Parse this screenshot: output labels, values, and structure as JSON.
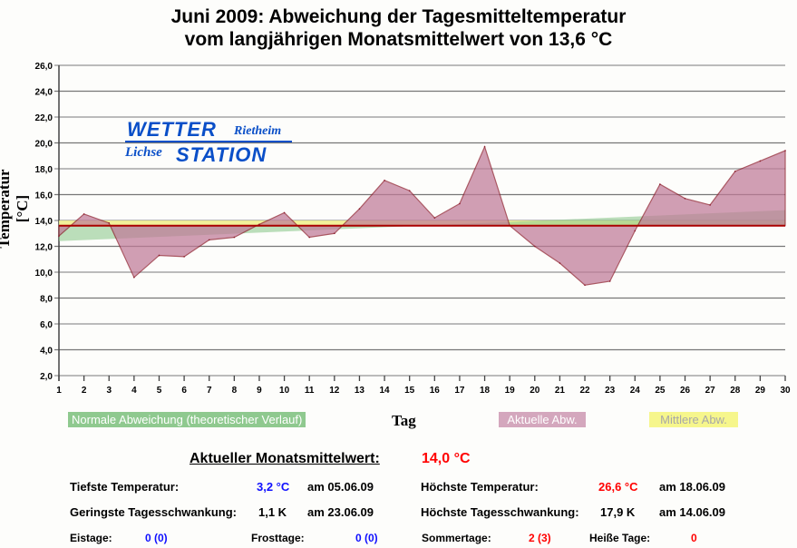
{
  "title": [
    "Juni 2009: Abweichung der Tagesmitteltemperatur",
    "vom langjährigen Monatsmittelwert von 13,6 °C"
  ],
  "logo": {
    "word1": "WETTER",
    "place": "Rietheim",
    "word3": "Lichse",
    "word2": "STATION"
  },
  "chart_data": {
    "type": "area",
    "title": "Juni 2009: Abweichung der Tagesmitteltemperatur vom langjährigen Monatsmittelwert von 13,6 °C",
    "xlabel": "Tag",
    "ylabel": "Temperatur [°C]",
    "ylim": [
      2,
      26
    ],
    "yticks": [
      "2,0",
      "4,0",
      "6,0",
      "8,0",
      "10,0",
      "12,0",
      "14,0",
      "16,0",
      "18,0",
      "20,0",
      "22,0",
      "24,0",
      "26,0"
    ],
    "x": [
      1,
      2,
      3,
      4,
      5,
      6,
      7,
      8,
      9,
      10,
      11,
      12,
      13,
      14,
      15,
      16,
      17,
      18,
      19,
      20,
      21,
      22,
      23,
      24,
      25,
      26,
      27,
      28,
      29,
      30
    ],
    "baseline": 13.6,
    "series": [
      {
        "name": "Aktuelle Abw.",
        "color": "#c07a98",
        "values": [
          12.8,
          14.5,
          13.8,
          9.6,
          11.3,
          11.2,
          12.5,
          12.7,
          13.7,
          14.6,
          12.7,
          13.0,
          14.9,
          17.1,
          16.3,
          14.2,
          15.3,
          19.7,
          13.6,
          12.0,
          10.7,
          9.0,
          9.3,
          13.2,
          16.8,
          15.7,
          15.2,
          17.8,
          18.6,
          19.4
        ]
      },
      {
        "name": "Normale Abweichung (theoretischer Verlauf)",
        "color": "#8fc98f",
        "start": 12.4,
        "end": 14.8
      },
      {
        "name": "Mittlere Abw.",
        "color": "#f0f08a",
        "value": 14.0
      }
    ],
    "grid": true,
    "legend": "bottom"
  },
  "stats": {
    "mean_label": "Aktueller Monatsmittelwert:",
    "mean_value": "14,0 °C",
    "min_label": "Tiefste Temperatur:",
    "min_value": "3,2 °C",
    "min_date": "am 05.06.09",
    "max_label": "Höchste Temperatur:",
    "max_value": "26,6 °C",
    "max_date": "am 18.06.09",
    "minrange_label": "Geringste Tagesschwankung:",
    "minrange_value": "1,1 K",
    "minrange_date": "am 23.06.09",
    "maxrange_label": "Höchste Tagesschwankung:",
    "maxrange_value": "17,9 K",
    "maxrange_date": "am 14.06.09",
    "eis_label": "Eistage:",
    "eis_value": "0 (0)",
    "frost_label": "Frosttage:",
    "frost_value": "0 (0)",
    "sommer_label": "Sommertage:",
    "sommer_value": "2 (3)",
    "heiss_label": "Heiße Tage:",
    "heiss_value": "0"
  }
}
